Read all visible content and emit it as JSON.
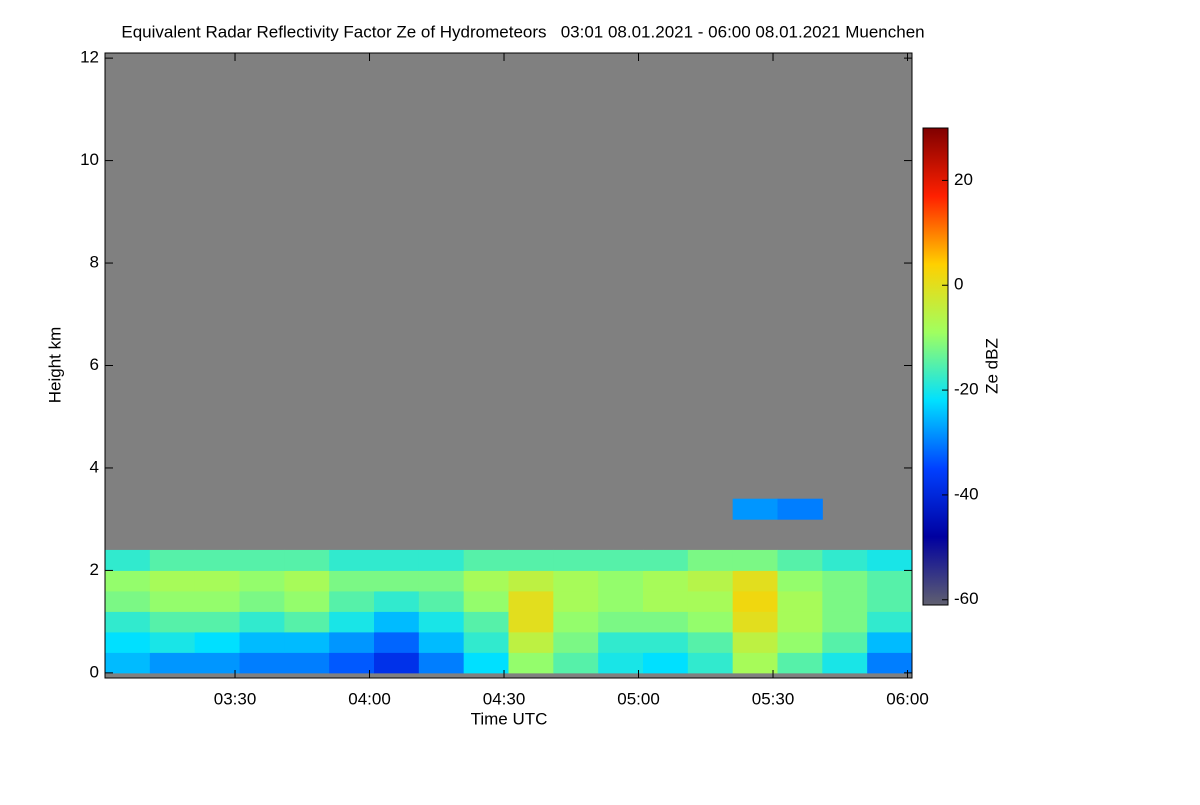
{
  "chart_data": {
    "type": "heatmap",
    "title": "Equivalent Radar Reflectivity Factor Ze of Hydrometeors   03:01 08.01.2021 - 06:00 08.01.2021 Muenchen",
    "x_label": "Time UTC",
    "y_label": "Height km",
    "colorbar_label": "Ze dBZ",
    "x": [
      186,
      196,
      206,
      216,
      226,
      236,
      246,
      256,
      266,
      276,
      286,
      296,
      306,
      316,
      326,
      336,
      346,
      356
    ],
    "y": [
      0.2,
      0.6,
      1.0,
      1.4,
      1.8,
      2.2,
      3.2
    ],
    "z": [
      [
        -25,
        -28,
        -28,
        -30,
        -30,
        -33,
        -38,
        -30,
        -22,
        -10,
        -15,
        -20,
        -22,
        -18,
        -8,
        -15,
        -20,
        -30
      ],
      [
        -22,
        -20,
        -22,
        -25,
        -25,
        -28,
        -32,
        -25,
        -18,
        -5,
        -12,
        -18,
        -18,
        -15,
        -5,
        -10,
        -15,
        -25
      ],
      [
        -18,
        -15,
        -15,
        -18,
        -15,
        -20,
        -25,
        -20,
        -15,
        0,
        -10,
        -12,
        -12,
        -10,
        0,
        -8,
        -12,
        -18
      ],
      [
        -12,
        -10,
        -10,
        -12,
        -10,
        -15,
        -18,
        -15,
        -10,
        0,
        -8,
        -10,
        -8,
        -8,
        2,
        -8,
        -12,
        -15
      ],
      [
        -10,
        -8,
        -8,
        -10,
        -8,
        -12,
        -12,
        -12,
        -8,
        -5,
        -8,
        -10,
        -8,
        -6,
        0,
        -10,
        -12,
        -15
      ],
      [
        -18,
        -15,
        -15,
        -15,
        -15,
        -18,
        -18,
        -18,
        -15,
        -15,
        -15,
        -15,
        -15,
        -12,
        -12,
        -15,
        -18,
        -20
      ],
      [
        null,
        null,
        null,
        null,
        null,
        null,
        null,
        null,
        null,
        null,
        null,
        null,
        null,
        null,
        -28,
        -30,
        null,
        null
      ]
    ],
    "xlim": [
      181,
      361
    ],
    "ylim": [
      -0.1,
      12.1
    ],
    "xticks": [
      {
        "value": 210,
        "label": "03:30"
      },
      {
        "value": 240,
        "label": "04:00"
      },
      {
        "value": 270,
        "label": "04:30"
      },
      {
        "value": 300,
        "label": "05:00"
      },
      {
        "value": 330,
        "label": "05:30"
      },
      {
        "value": 360,
        "label": "06:00"
      }
    ],
    "yticks": [
      0,
      2,
      4,
      6,
      8,
      10,
      12
    ],
    "clim": [
      -61,
      30
    ],
    "cticks": [
      -60,
      -40,
      -20,
      0,
      20
    ],
    "colormap": [
      "#606070",
      "#0000a0",
      "#0040ff",
      "#00e0ff",
      "#a0ff60",
      "#ffd000",
      "#ff2000",
      "#800000"
    ],
    "background": "#808080"
  }
}
